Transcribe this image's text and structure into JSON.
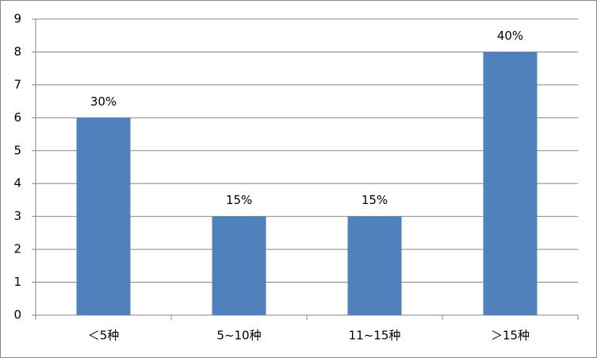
{
  "chart_data": {
    "type": "bar",
    "categories": [
      "＜5种",
      "5~10种",
      "11~15种",
      "＞15种"
    ],
    "values": [
      6,
      3,
      3,
      8
    ],
    "annotations": [
      "30%",
      "15%",
      "15%",
      "40%"
    ],
    "color": "#4f81bd",
    "ylim": [
      0,
      9
    ],
    "yticks": [
      0,
      1,
      2,
      3,
      4,
      5,
      6,
      7,
      8,
      9
    ],
    "grid": true
  }
}
